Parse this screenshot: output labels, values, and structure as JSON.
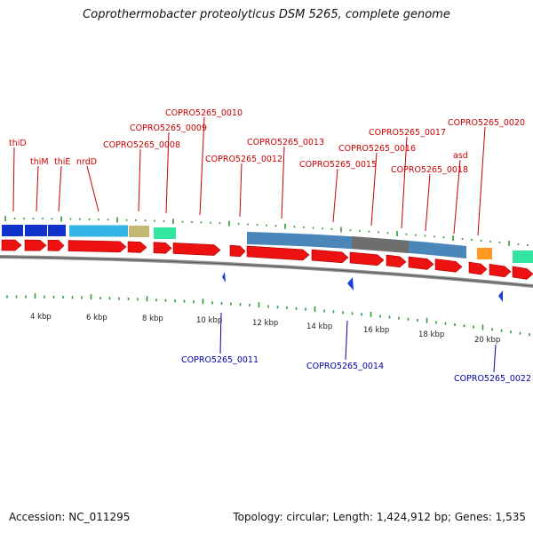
{
  "title": "Coprothermobacter proteolyticus DSM 5265, complete genome",
  "footer": {
    "accession": "Accession: NC_011295",
    "summary": "Topology: circular; Length: 1,424,912 bp; Genes: 1,535"
  },
  "colors": {
    "gene_forward": "#ee1111",
    "gene_reverse": "#1a3fd6",
    "backbone": "#909090",
    "tick": "#339933",
    "label_forward": "#cc0000",
    "label_reverse": "#0000aa",
    "cog_blue": "#1133cc",
    "cog_cyan": "#33b5e5",
    "cog_khaki": "#c4b774",
    "cog_mint": "#33e5a0",
    "cog_steel": "#4a86b9",
    "cog_gray": "#6e6e6e",
    "cog_orange": "#ff9922"
  },
  "axis_labels": [
    "4 kbp",
    "6 kbp",
    "8 kbp",
    "10 kbp",
    "12 kbp",
    "14 kbp",
    "16 kbp",
    "18 kbp",
    "20 kbp"
  ],
  "forward_gene_labels": [
    "thiD",
    "thiM",
    "thiE",
    "nrdD",
    "COPRO5265_0008",
    "COPRO5265_0009",
    "COPRO5265_0010",
    "COPRO5265_0012",
    "COPRO5265_0013",
    "COPRO5265_0015",
    "COPRO5265_0016",
    "COPRO5265_0017",
    "COPRO5265_0018",
    "asd",
    "COPRO5265_0020"
  ],
  "reverse_gene_labels": [
    "COPRO5265_0011",
    "COPRO5265_0014",
    "COPRO5265_0022"
  ]
}
